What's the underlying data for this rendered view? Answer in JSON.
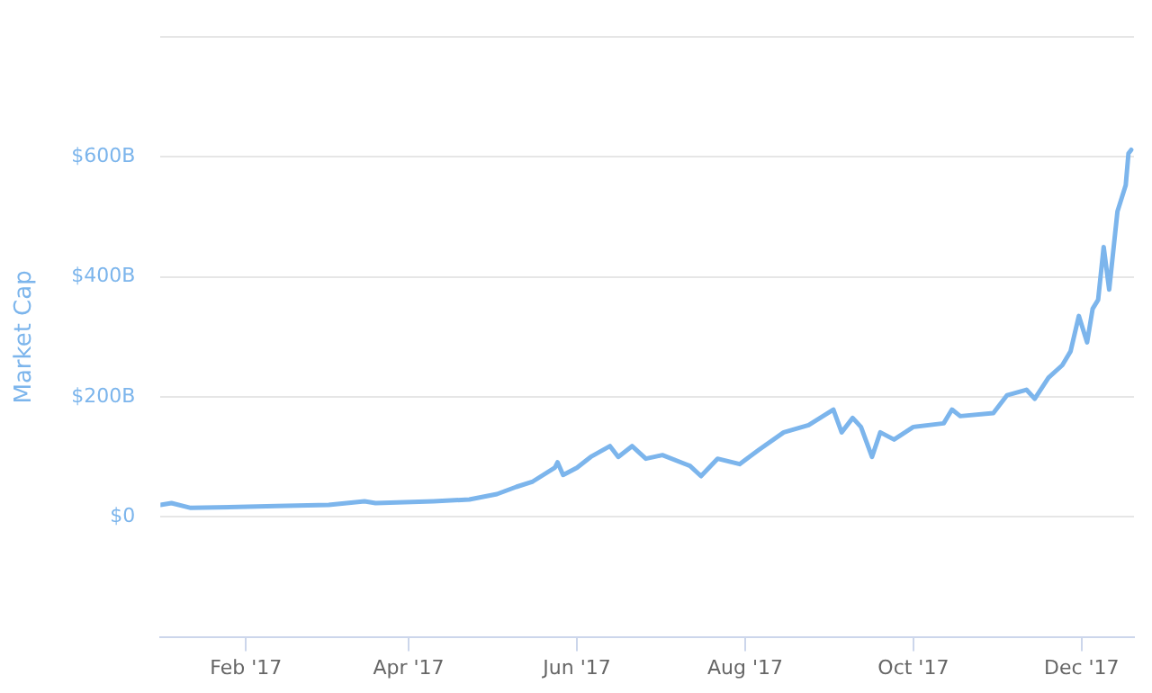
{
  "chart_data": {
    "type": "line",
    "ylabel": "Market Cap",
    "x": [
      "2017-01-01",
      "2017-01-05",
      "2017-01-12",
      "2017-02-12",
      "2017-03-03",
      "2017-03-16",
      "2017-03-20",
      "2017-04-10",
      "2017-04-23",
      "2017-05-03",
      "2017-05-10",
      "2017-05-16",
      "2017-05-24",
      "2017-05-25",
      "2017-05-27",
      "2017-06-01",
      "2017-06-06",
      "2017-06-13",
      "2017-06-16",
      "2017-06-21",
      "2017-06-26",
      "2017-07-02",
      "2017-07-12",
      "2017-07-16",
      "2017-07-22",
      "2017-07-30",
      "2017-08-06",
      "2017-08-15",
      "2017-08-24",
      "2017-09-02",
      "2017-09-05",
      "2017-09-09",
      "2017-09-12",
      "2017-09-16",
      "2017-09-19",
      "2017-09-24",
      "2017-10-01",
      "2017-10-12",
      "2017-10-15",
      "2017-10-18",
      "2017-10-30",
      "2017-11-04",
      "2017-11-11",
      "2017-11-14",
      "2017-11-19",
      "2017-11-24",
      "2017-11-27",
      "2017-11-30",
      "2017-12-03",
      "2017-12-05",
      "2017-12-07",
      "2017-12-09",
      "2017-12-11",
      "2017-12-14",
      "2017-12-17",
      "2017-12-18",
      "2017-12-19"
    ],
    "series": [
      {
        "color": "#7cb5ec",
        "values": [
          20,
          23,
          15,
          18,
          20,
          26,
          23,
          26,
          29,
          38,
          50,
          59,
          82,
          91,
          70,
          82,
          100,
          118,
          100,
          118,
          97,
          103,
          85,
          68,
          97,
          88,
          112,
          141,
          153,
          179,
          141,
          165,
          150,
          100,
          141,
          129,
          150,
          156,
          179,
          168,
          173,
          203,
          212,
          197,
          232,
          253,
          276,
          335,
          291,
          347,
          362,
          450,
          379,
          509,
          553,
          606,
          612
        ]
      }
    ],
    "xlim": [
      "2017-01-01",
      "2017-12-20"
    ],
    "xticks": [
      {
        "value": "2017-02-01",
        "label": "Feb '17"
      },
      {
        "value": "2017-04-01",
        "label": "Apr '17"
      },
      {
        "value": "2017-06-01",
        "label": "Jun '17"
      },
      {
        "value": "2017-08-01",
        "label": "Aug '17"
      },
      {
        "value": "2017-10-01",
        "label": "Oct '17"
      },
      {
        "value": "2017-12-01",
        "label": "Dec '17"
      }
    ],
    "ylim": [
      -200,
      800
    ],
    "yticks": [
      {
        "value": -200,
        "label": null
      },
      {
        "value": 0,
        "label": "$0"
      },
      {
        "value": 200,
        "label": "$200B"
      },
      {
        "value": 400,
        "label": "$400B"
      },
      {
        "value": 600,
        "label": "$600B"
      },
      {
        "value": 800,
        "label": null
      }
    ],
    "grid": "y",
    "legend": false,
    "marker": "none",
    "line_style": "solid"
  }
}
